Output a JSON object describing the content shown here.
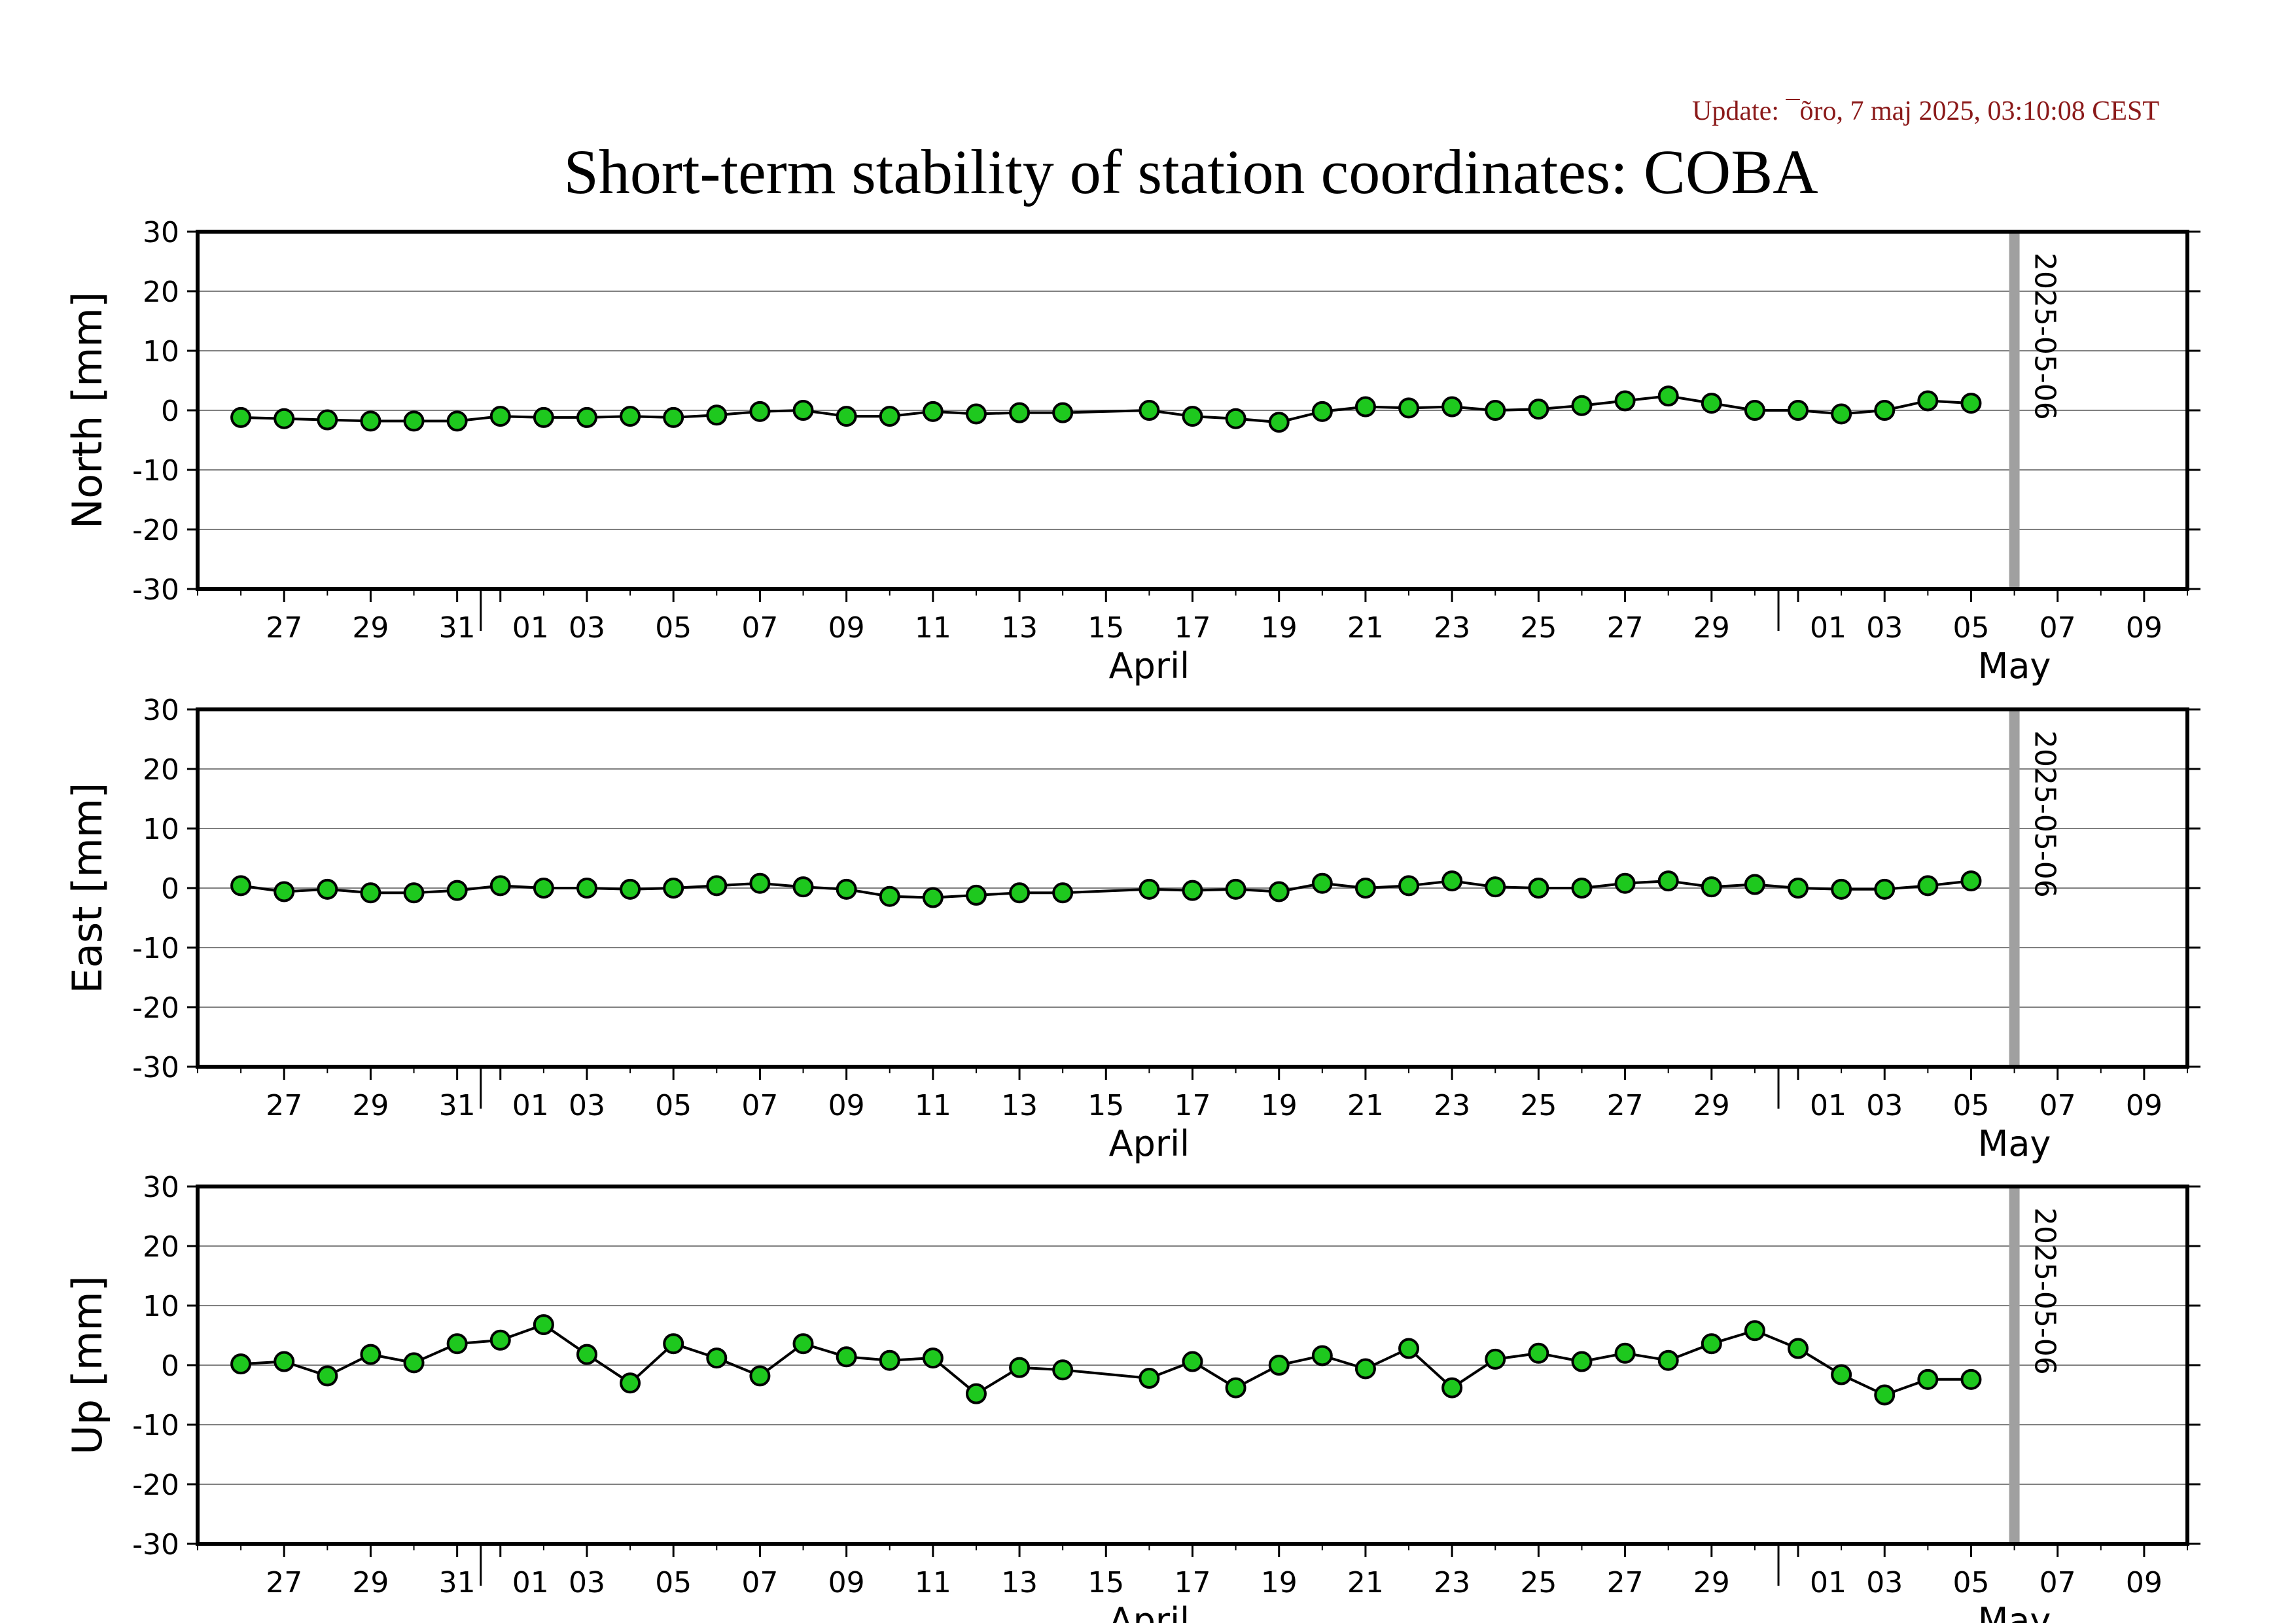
{
  "header": {
    "update_text": "Update: ¯õro, 7 maj 2025, 03:10:08 CEST",
    "title": "Short-term stability of station coordinates: COBA"
  },
  "style": {
    "point_fill": "#1ec81e",
    "point_stroke": "#000000",
    "line_color": "#000000",
    "grid_color": "#808080",
    "marker_line_color": "#a0a0a0",
    "update_color": "#8b1a1a"
  },
  "x_axis": {
    "start": "2025-03-25",
    "end": "2025-05-10",
    "tick_dates": [
      "2025-03-27",
      "2025-03-29",
      "2025-03-31",
      "2025-04-01",
      "2025-04-03",
      "2025-04-05",
      "2025-04-07",
      "2025-04-09",
      "2025-04-11",
      "2025-04-13",
      "2025-04-15",
      "2025-04-17",
      "2025-04-19",
      "2025-04-21",
      "2025-04-23",
      "2025-04-25",
      "2025-04-27",
      "2025-04-29",
      "2025-05-01",
      "2025-05-03",
      "2025-05-05",
      "2025-05-07",
      "2025-05-09"
    ],
    "tick_labels": [
      "27",
      "29",
      "31",
      "01",
      "03",
      "05",
      "07",
      "09",
      "11",
      "13",
      "15",
      "17",
      "19",
      "21",
      "23",
      "25",
      "27",
      "29",
      "01",
      "03",
      "05",
      "07",
      "09"
    ],
    "month_boundaries": [
      "2025-04-01",
      "2025-05-01"
    ],
    "months": [
      {
        "label": "April",
        "center_date": "2025-04-16"
      },
      {
        "label": "May",
        "center_date": "2025-05-06"
      }
    ]
  },
  "marker": {
    "date": "2025-05-06",
    "label": "2025-05-06"
  },
  "chart_data": [
    {
      "type": "line",
      "ylabel": "North [mm]",
      "ylim": [
        -30,
        30
      ],
      "yticks": [
        -30,
        -20,
        -10,
        0,
        10,
        20,
        30
      ],
      "grid": true,
      "x": [
        "2025-03-26",
        "2025-03-27",
        "2025-03-28",
        "2025-03-29",
        "2025-03-30",
        "2025-03-31",
        "2025-04-01",
        "2025-04-02",
        "2025-04-03",
        "2025-04-04",
        "2025-04-05",
        "2025-04-06",
        "2025-04-07",
        "2025-04-08",
        "2025-04-09",
        "2025-04-10",
        "2025-04-11",
        "2025-04-12",
        "2025-04-13",
        "2025-04-14",
        "2025-04-16",
        "2025-04-17",
        "2025-04-18",
        "2025-04-19",
        "2025-04-20",
        "2025-04-21",
        "2025-04-22",
        "2025-04-23",
        "2025-04-24",
        "2025-04-25",
        "2025-04-26",
        "2025-04-27",
        "2025-04-28",
        "2025-04-29",
        "2025-04-30",
        "2025-05-01",
        "2025-05-02",
        "2025-05-03",
        "2025-05-04",
        "2025-05-05"
      ],
      "y": [
        -1.2,
        -1.4,
        -1.6,
        -1.8,
        -1.8,
        -1.8,
        -1.0,
        -1.2,
        -1.2,
        -1.0,
        -1.2,
        -0.8,
        -0.2,
        0.0,
        -1.0,
        -1.0,
        -0.2,
        -0.6,
        -0.4,
        -0.4,
        0.0,
        -1.0,
        -1.4,
        -2.0,
        -0.2,
        0.6,
        0.4,
        0.6,
        0.0,
        0.2,
        0.8,
        1.6,
        2.4,
        1.2,
        0.0,
        0.0,
        -0.6,
        0.0,
        1.6,
        1.2
      ]
    },
    {
      "type": "line",
      "ylabel": "East [mm]",
      "ylim": [
        -30,
        30
      ],
      "yticks": [
        -30,
        -20,
        -10,
        0,
        10,
        20,
        30
      ],
      "grid": true,
      "x": [
        "2025-03-26",
        "2025-03-27",
        "2025-03-28",
        "2025-03-29",
        "2025-03-30",
        "2025-03-31",
        "2025-04-01",
        "2025-04-02",
        "2025-04-03",
        "2025-04-04",
        "2025-04-05",
        "2025-04-06",
        "2025-04-07",
        "2025-04-08",
        "2025-04-09",
        "2025-04-10",
        "2025-04-11",
        "2025-04-12",
        "2025-04-13",
        "2025-04-14",
        "2025-04-16",
        "2025-04-17",
        "2025-04-18",
        "2025-04-19",
        "2025-04-20",
        "2025-04-21",
        "2025-04-22",
        "2025-04-23",
        "2025-04-24",
        "2025-04-25",
        "2025-04-26",
        "2025-04-27",
        "2025-04-28",
        "2025-04-29",
        "2025-04-30",
        "2025-05-01",
        "2025-05-02",
        "2025-05-03",
        "2025-05-04",
        "2025-05-05"
      ],
      "y": [
        0.4,
        -0.6,
        -0.2,
        -0.8,
        -0.8,
        -0.4,
        0.4,
        0.0,
        0.0,
        -0.2,
        0.0,
        0.4,
        0.8,
        0.2,
        -0.2,
        -1.4,
        -1.6,
        -1.2,
        -0.8,
        -0.8,
        -0.2,
        -0.4,
        -0.2,
        -0.6,
        0.8,
        0.0,
        0.4,
        1.2,
        0.2,
        0.0,
        0.0,
        0.8,
        1.2,
        0.2,
        0.6,
        0.0,
        -0.2,
        -0.2,
        0.4,
        1.2
      ]
    },
    {
      "type": "line",
      "ylabel": "Up [mm]",
      "ylim": [
        -30,
        30
      ],
      "yticks": [
        -30,
        -20,
        -10,
        0,
        10,
        20,
        30
      ],
      "grid": true,
      "x": [
        "2025-03-26",
        "2025-03-27",
        "2025-03-28",
        "2025-03-29",
        "2025-03-30",
        "2025-03-31",
        "2025-04-01",
        "2025-04-02",
        "2025-04-03",
        "2025-04-04",
        "2025-04-05",
        "2025-04-06",
        "2025-04-07",
        "2025-04-08",
        "2025-04-09",
        "2025-04-10",
        "2025-04-11",
        "2025-04-12",
        "2025-04-13",
        "2025-04-14",
        "2025-04-16",
        "2025-04-17",
        "2025-04-18",
        "2025-04-19",
        "2025-04-20",
        "2025-04-21",
        "2025-04-22",
        "2025-04-23",
        "2025-04-24",
        "2025-04-25",
        "2025-04-26",
        "2025-04-27",
        "2025-04-28",
        "2025-04-29",
        "2025-04-30",
        "2025-05-01",
        "2025-05-02",
        "2025-05-03",
        "2025-05-04",
        "2025-05-05"
      ],
      "y": [
        0.2,
        0.6,
        -1.8,
        1.8,
        0.4,
        3.6,
        4.2,
        6.8,
        1.8,
        -3.0,
        3.6,
        1.2,
        -1.8,
        3.6,
        1.4,
        0.8,
        1.2,
        -4.8,
        -0.4,
        -0.8,
        -2.2,
        0.6,
        -3.8,
        0.0,
        1.6,
        -0.6,
        2.8,
        -3.8,
        1.0,
        2.0,
        0.6,
        2.0,
        0.8,
        3.6,
        5.8,
        2.8,
        -1.6,
        -5.0,
        -2.4,
        -2.4
      ]
    }
  ]
}
